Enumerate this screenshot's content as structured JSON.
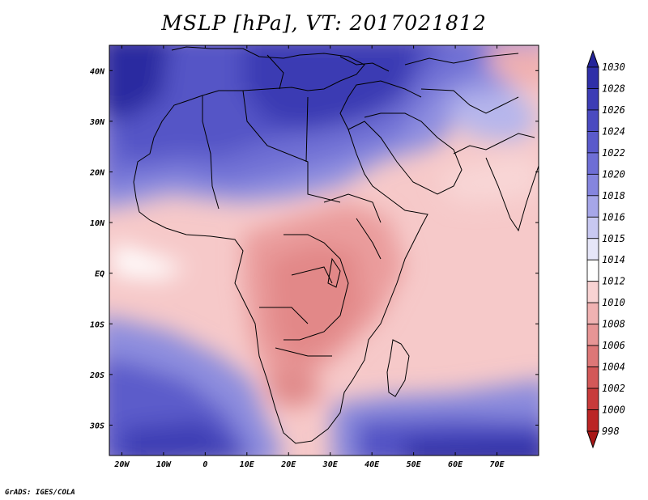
{
  "title": "MSLP [hPa], VT: 2017021812",
  "credit": "GrADS: IGES/COLA",
  "map": {
    "lon_range": [
      -23,
      80
    ],
    "lat_range": [
      -36,
      45
    ],
    "lon_ticks": [
      {
        "value": -20,
        "label": "20W"
      },
      {
        "value": -10,
        "label": "10W"
      },
      {
        "value": 0,
        "label": "0"
      },
      {
        "value": 10,
        "label": "10E"
      },
      {
        "value": 20,
        "label": "20E"
      },
      {
        "value": 30,
        "label": "30E"
      },
      {
        "value": 40,
        "label": "40E"
      },
      {
        "value": 50,
        "label": "50E"
      },
      {
        "value": 60,
        "label": "60E"
      },
      {
        "value": 70,
        "label": "70E"
      }
    ],
    "lat_ticks": [
      {
        "value": 40,
        "label": "40N"
      },
      {
        "value": 30,
        "label": "30N"
      },
      {
        "value": 20,
        "label": "20N"
      },
      {
        "value": 10,
        "label": "10N"
      },
      {
        "value": 0,
        "label": "EQ"
      },
      {
        "value": -10,
        "label": "10S"
      },
      {
        "value": -20,
        "label": "20S"
      },
      {
        "value": -30,
        "label": "30S"
      }
    ]
  },
  "colorbar": {
    "labels": [
      "1030",
      "1028",
      "1026",
      "1024",
      "1022",
      "1020",
      "1018",
      "1016",
      "1015",
      "1014",
      "1012",
      "1010",
      "1008",
      "1006",
      "1004",
      "1002",
      "1000",
      "998"
    ],
    "colors": [
      "#24249a",
      "#2f2fa8",
      "#3c3cb5",
      "#4a4ac0",
      "#5a5acb",
      "#6e6ed5",
      "#8585de",
      "#a6a6e8",
      "#c8c8f1",
      "#e6e6f8",
      "#ffffff",
      "#f8d3d3",
      "#f0b2b2",
      "#e79595",
      "#dd7777",
      "#d35858",
      "#c83b3b",
      "#bb2525",
      "#a81616"
    ]
  }
}
